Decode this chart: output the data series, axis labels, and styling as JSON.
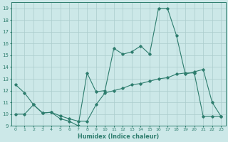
{
  "xlabel": "Humidex (Indice chaleur)",
  "background_color": "#cce8e8",
  "grid_color": "#aacccc",
  "line_color": "#2e7d6e",
  "x_data": [
    0,
    1,
    2,
    3,
    4,
    5,
    6,
    7,
    8,
    9,
    10,
    11,
    12,
    13,
    14,
    15,
    16,
    17,
    18,
    19,
    20,
    21,
    22,
    23
  ],
  "y_upper": [
    12.5,
    11.8,
    10.8,
    10.1,
    10.15,
    9.6,
    9.4,
    9.0,
    13.5,
    11.9,
    12.0,
    15.6,
    15.1,
    15.3,
    15.8,
    15.1,
    19.0,
    19.0,
    16.7,
    13.4,
    13.6,
    13.8,
    11.0,
    9.8
  ],
  "y_lower": [
    10.0,
    10.0,
    10.8,
    10.1,
    10.15,
    9.85,
    9.6,
    9.4,
    9.4,
    10.8,
    11.8,
    12.0,
    12.2,
    12.5,
    12.6,
    12.8,
    13.0,
    13.1,
    13.4,
    13.5,
    13.5,
    9.8,
    9.8,
    9.8
  ],
  "xlim": [
    -0.5,
    23.5
  ],
  "ylim": [
    9,
    19.5
  ],
  "yticks": [
    9,
    10,
    11,
    12,
    13,
    14,
    15,
    16,
    17,
    18,
    19
  ],
  "xticks": [
    0,
    1,
    2,
    3,
    4,
    5,
    6,
    7,
    8,
    9,
    10,
    11,
    12,
    13,
    14,
    15,
    16,
    17,
    18,
    19,
    20,
    21,
    22,
    23
  ],
  "figsize": [
    3.2,
    2.0
  ],
  "dpi": 100
}
